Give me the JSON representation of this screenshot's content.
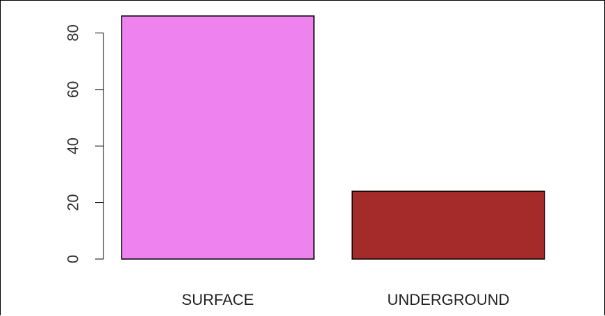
{
  "chart_data": {
    "type": "bar",
    "categories": [
      "SURFACE",
      "UNDERGROUND"
    ],
    "values": [
      86,
      24
    ],
    "colors": [
      "#EE82EE",
      "#A52A2A"
    ],
    "bar_border": "#000000",
    "title": "",
    "xlabel": "",
    "ylabel": "",
    "ylim": [
      0,
      86
    ],
    "yticks": [
      0,
      20,
      40,
      60,
      80
    ],
    "ytick_labels": [
      "0",
      "20",
      "40",
      "60",
      "80"
    ],
    "grid": false,
    "legend": "none"
  }
}
